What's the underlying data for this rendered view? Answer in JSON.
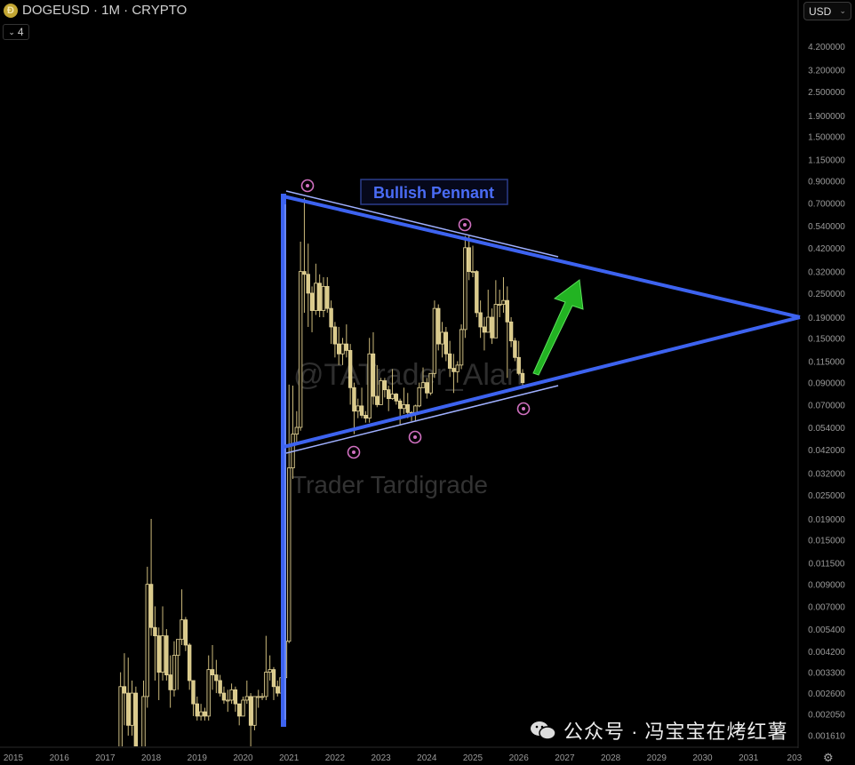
{
  "header": {
    "symbol_title": "DOGEUSD · 1M · CRYPTO",
    "indicator_count": "4",
    "currency": "USD"
  },
  "watermarks": {
    "handle": "@TATrader_Alan",
    "name": "Trader Tardigrade",
    "wechat": "公众号 · 冯宝宝在烤红薯"
  },
  "colors": {
    "candle": "#d9c98a",
    "pennant": "#3d63f0",
    "pennant_thin": "#9fb0ff",
    "arrow": "#1fb31f",
    "marker": "#d070c0"
  },
  "chart_data": {
    "type": "candlestick",
    "scale": "log",
    "timeframe": "1M",
    "annotation_label": "Bullish Pennant",
    "x_ticks": [
      "2015",
      "2016",
      "2017",
      "2018",
      "2019",
      "2020",
      "2021",
      "2022",
      "2023",
      "2024",
      "2025",
      "2026",
      "2027",
      "2028",
      "2029",
      "2030",
      "2031",
      "203"
    ],
    "y_ticks": [
      "4.200000",
      "3.200000",
      "2.500000",
      "1.900000",
      "1.500000",
      "1.150000",
      "0.900000",
      "0.700000",
      "0.540000",
      "0.420000",
      "0.320000",
      "0.250000",
      "0.190000",
      "0.150000",
      "0.115000",
      "0.090000",
      "0.070000",
      "0.054000",
      "0.042000",
      "0.032000",
      "0.025000",
      "0.019000",
      "0.015000",
      "0.011500",
      "0.009000",
      "0.007000",
      "0.005400",
      "0.004200",
      "0.003300",
      "0.002600",
      "0.002050",
      "0.001610"
    ],
    "ohlc": [
      [
        "2017-05",
        0.0009,
        0.0033,
        0.0009,
        0.0028
      ],
      [
        "2017-06",
        0.0028,
        0.0041,
        0.0018,
        0.0026
      ],
      [
        "2017-07",
        0.0026,
        0.0039,
        0.0016,
        0.0018
      ],
      [
        "2017-08",
        0.0018,
        0.003,
        0.0016,
        0.0026
      ],
      [
        "2017-09",
        0.0026,
        0.0028,
        0.0009,
        0.0011
      ],
      [
        "2017-10",
        0.0011,
        0.0014,
        0.0009,
        0.0012
      ],
      [
        "2017-11",
        0.0012,
        0.003,
        0.0011,
        0.0025
      ],
      [
        "2017-12",
        0.0025,
        0.011,
        0.0022,
        0.009
      ],
      [
        "2018-01",
        0.009,
        0.019,
        0.005,
        0.0055
      ],
      [
        "2018-02",
        0.0055,
        0.007,
        0.003,
        0.005
      ],
      [
        "2018-03",
        0.005,
        0.0055,
        0.0024,
        0.0033
      ],
      [
        "2018-04",
        0.0033,
        0.007,
        0.003,
        0.005
      ],
      [
        "2018-05",
        0.005,
        0.0054,
        0.003,
        0.0032
      ],
      [
        "2018-06",
        0.0032,
        0.004,
        0.0022,
        0.0027
      ],
      [
        "2018-07",
        0.0027,
        0.0047,
        0.0025,
        0.004
      ],
      [
        "2018-08",
        0.004,
        0.0048,
        0.0027,
        0.0048
      ],
      [
        "2018-09",
        0.0048,
        0.0085,
        0.0045,
        0.006
      ],
      [
        "2018-10",
        0.006,
        0.0062,
        0.0042,
        0.0045
      ],
      [
        "2018-11",
        0.0045,
        0.0046,
        0.0027,
        0.003
      ],
      [
        "2018-12",
        0.003,
        0.003,
        0.002,
        0.0023
      ],
      [
        "2019-01",
        0.0023,
        0.0025,
        0.0019,
        0.002
      ],
      [
        "2019-02",
        0.002,
        0.0023,
        0.0019,
        0.0021
      ],
      [
        "2019-03",
        0.0021,
        0.0022,
        0.0019,
        0.002
      ],
      [
        "2019-04",
        0.002,
        0.004,
        0.0019,
        0.0034
      ],
      [
        "2019-05",
        0.0034,
        0.0045,
        0.0027,
        0.0032
      ],
      [
        "2019-06",
        0.0032,
        0.0038,
        0.0026,
        0.003
      ],
      [
        "2019-07",
        0.003,
        0.0032,
        0.0025,
        0.0026
      ],
      [
        "2019-08",
        0.0026,
        0.0028,
        0.0023,
        0.0024
      ],
      [
        "2019-09",
        0.0024,
        0.0027,
        0.0021,
        0.0024
      ],
      [
        "2019-10",
        0.0024,
        0.0029,
        0.0023,
        0.0027
      ],
      [
        "2019-11",
        0.0027,
        0.0028,
        0.0021,
        0.0023
      ],
      [
        "2019-12",
        0.0023,
        0.0023,
        0.0018,
        0.002
      ],
      [
        "2020-01",
        0.002,
        0.0025,
        0.002,
        0.0024
      ],
      [
        "2020-02",
        0.0024,
        0.003,
        0.0023,
        0.0025
      ],
      [
        "2020-03",
        0.0025,
        0.0026,
        0.0013,
        0.0018
      ],
      [
        "2020-04",
        0.0018,
        0.0025,
        0.0017,
        0.0025
      ],
      [
        "2020-05",
        0.0025,
        0.0027,
        0.0022,
        0.0025
      ],
      [
        "2020-06",
        0.0025,
        0.0026,
        0.0024,
        0.0025
      ],
      [
        "2020-07",
        0.0025,
        0.005,
        0.0024,
        0.0033
      ],
      [
        "2020-08",
        0.0033,
        0.004,
        0.003,
        0.0034
      ],
      [
        "2020-09",
        0.0034,
        0.0035,
        0.0024,
        0.0028
      ],
      [
        "2020-10",
        0.0028,
        0.003,
        0.0025,
        0.0026
      ],
      [
        "2020-11",
        0.0026,
        0.0044,
        0.0025,
        0.0031
      ],
      [
        "2020-12",
        0.0031,
        0.004,
        0.0026,
        0.0047
      ],
      [
        "2021-01",
        0.0047,
        0.088,
        0.0046,
        0.034
      ],
      [
        "2021-02",
        0.034,
        0.087,
        0.03,
        0.05
      ],
      [
        "2021-03",
        0.05,
        0.065,
        0.045,
        0.054
      ],
      [
        "2021-04",
        0.054,
        0.45,
        0.052,
        0.32
      ],
      [
        "2021-05",
        0.32,
        0.74,
        0.2,
        0.31
      ],
      [
        "2021-06",
        0.31,
        0.44,
        0.17,
        0.25
      ],
      [
        "2021-07",
        0.25,
        0.27,
        0.16,
        0.205
      ],
      [
        "2021-08",
        0.205,
        0.35,
        0.195,
        0.28
      ],
      [
        "2021-09",
        0.28,
        0.31,
        0.19,
        0.205
      ],
      [
        "2021-10",
        0.205,
        0.3,
        0.19,
        0.27
      ],
      [
        "2021-11",
        0.27,
        0.3,
        0.2,
        0.21
      ],
      [
        "2021-12",
        0.21,
        0.23,
        0.14,
        0.17
      ],
      [
        "2022-01",
        0.17,
        0.18,
        0.12,
        0.14
      ],
      [
        "2022-02",
        0.14,
        0.17,
        0.11,
        0.125
      ],
      [
        "2022-03",
        0.125,
        0.15,
        0.11,
        0.14
      ],
      [
        "2022-04",
        0.14,
        0.175,
        0.12,
        0.13
      ],
      [
        "2022-05",
        0.13,
        0.14,
        0.07,
        0.085
      ],
      [
        "2022-06",
        0.085,
        0.09,
        0.05,
        0.065
      ],
      [
        "2022-07",
        0.065,
        0.075,
        0.06,
        0.069
      ],
      [
        "2022-08",
        0.069,
        0.085,
        0.06,
        0.062
      ],
      [
        "2022-09",
        0.062,
        0.065,
        0.057,
        0.06
      ],
      [
        "2022-10",
        0.06,
        0.15,
        0.057,
        0.125
      ],
      [
        "2022-11",
        0.125,
        0.16,
        0.07,
        0.077
      ],
      [
        "2022-12",
        0.077,
        0.11,
        0.068,
        0.07
      ],
      [
        "2023-01",
        0.07,
        0.095,
        0.07,
        0.092
      ],
      [
        "2023-02",
        0.092,
        0.095,
        0.076,
        0.083
      ],
      [
        "2023-03",
        0.083,
        0.087,
        0.065,
        0.075
      ],
      [
        "2023-04",
        0.075,
        0.105,
        0.074,
        0.079
      ],
      [
        "2023-05",
        0.079,
        0.08,
        0.07,
        0.073
      ],
      [
        "2023-06",
        0.073,
        0.075,
        0.056,
        0.067
      ],
      [
        "2023-07",
        0.067,
        0.085,
        0.063,
        0.07
      ],
      [
        "2023-08",
        0.07,
        0.08,
        0.06,
        0.064
      ],
      [
        "2023-09",
        0.064,
        0.065,
        0.058,
        0.063
      ],
      [
        "2023-10",
        0.063,
        0.07,
        0.058,
        0.069
      ],
      [
        "2023-11",
        0.069,
        0.09,
        0.068,
        0.085
      ],
      [
        "2023-12",
        0.085,
        0.107,
        0.085,
        0.09
      ],
      [
        "2024-01",
        0.09,
        0.095,
        0.075,
        0.08
      ],
      [
        "2024-02",
        0.08,
        0.1,
        0.078,
        0.1
      ],
      [
        "2024-03",
        0.1,
        0.23,
        0.095,
        0.21
      ],
      [
        "2024-04",
        0.21,
        0.22,
        0.13,
        0.14
      ],
      [
        "2024-05",
        0.14,
        0.18,
        0.12,
        0.16
      ],
      [
        "2024-06",
        0.16,
        0.17,
        0.115,
        0.125
      ],
      [
        "2024-07",
        0.125,
        0.145,
        0.096,
        0.106
      ],
      [
        "2024-08",
        0.106,
        0.125,
        0.08,
        0.102
      ],
      [
        "2024-09",
        0.102,
        0.115,
        0.09,
        0.11
      ],
      [
        "2024-10",
        0.11,
        0.175,
        0.105,
        0.165
      ],
      [
        "2024-11",
        0.165,
        0.48,
        0.15,
        0.42
      ],
      [
        "2024-12",
        0.42,
        0.48,
        0.29,
        0.32
      ],
      [
        "2025-01",
        0.32,
        0.43,
        0.3,
        0.32
      ],
      [
        "2025-02",
        0.32,
        0.325,
        0.19,
        0.2
      ],
      [
        "2025-03",
        0.2,
        0.23,
        0.15,
        0.17
      ],
      [
        "2025-04",
        0.17,
        0.19,
        0.13,
        0.16
      ],
      [
        "2025-05",
        0.16,
        0.26,
        0.16,
        0.19
      ],
      [
        "2025-06",
        0.19,
        0.21,
        0.14,
        0.15
      ],
      [
        "2025-07",
        0.15,
        0.29,
        0.15,
        0.22
      ],
      [
        "2025-08",
        0.22,
        0.26,
        0.19,
        0.22
      ],
      [
        "2025-09",
        0.22,
        0.3,
        0.2,
        0.23
      ],
      [
        "2025-10",
        0.23,
        0.27,
        0.095,
        0.18
      ],
      [
        "2025-11",
        0.18,
        0.19,
        0.135,
        0.145
      ],
      [
        "2025-12",
        0.145,
        0.15,
        0.115,
        0.12
      ],
      [
        "2026-01",
        0.12,
        0.145,
        0.098,
        0.1
      ],
      [
        "2026-02",
        0.1,
        0.105,
        0.085,
        0.09
      ]
    ]
  }
}
